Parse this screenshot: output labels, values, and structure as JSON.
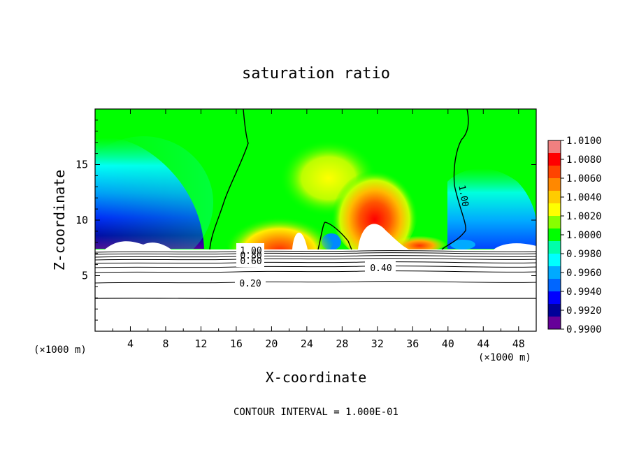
{
  "chart_data": {
    "type": "heatmap",
    "title": "saturation ratio",
    "xlabel": "X-coordinate",
    "ylabel": "Z-coordinate",
    "x_unit": "(×1000 m)",
    "y_unit": "(×1000 m)",
    "xlim": [
      0,
      50
    ],
    "ylim": [
      0,
      20
    ],
    "x_ticks": [
      "4",
      "8",
      "12",
      "16",
      "20",
      "24",
      "28",
      "32",
      "36",
      "40",
      "44",
      "48"
    ],
    "y_ticks": [
      "5",
      "10",
      "15"
    ],
    "colorbar": {
      "levels": [
        "1.0100",
        "1.0080",
        "1.0060",
        "1.0040",
        "1.0020",
        "1.0000",
        "0.9980",
        "0.9960",
        "0.9940",
        "0.9920",
        "0.9900"
      ],
      "colors": [
        "#f08080",
        "#ff0000",
        "#ff4400",
        "#ff8800",
        "#ffcc00",
        "#ffff00",
        "#88ff00",
        "#00ff00",
        "#00ffaa",
        "#00ffff",
        "#00aaff",
        "#0066ff",
        "#0000ff",
        "#000099",
        "#660099"
      ]
    },
    "contour_labels": [
      "1.00",
      "1.00",
      "0.80",
      "0.60",
      "0.40",
      "0.20"
    ],
    "contour_interval": "CONTOUR INTERVAL = 1.000E-01"
  }
}
